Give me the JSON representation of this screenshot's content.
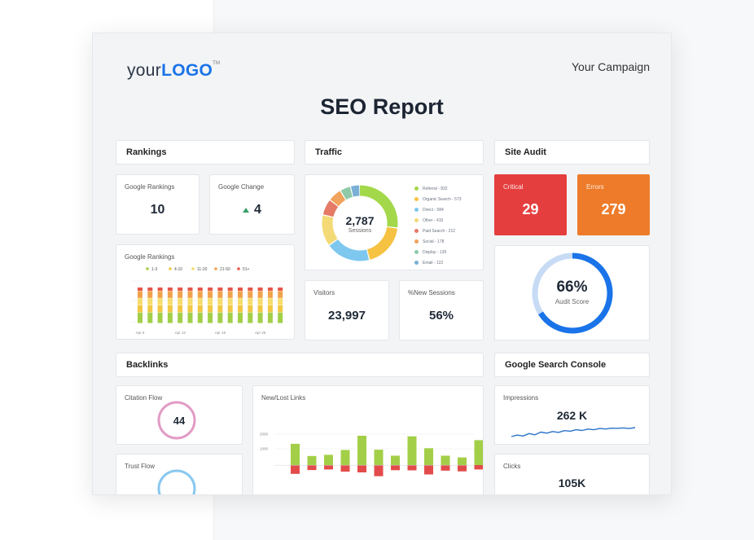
{
  "header": {
    "logo_prefix": "your",
    "logo_bold": "LOGO",
    "logo_tm": "TM",
    "campaign": "Your Campaign",
    "title": "SEO Report"
  },
  "sections": {
    "rankings": "Rankings",
    "traffic": "Traffic",
    "site_audit": "Site Audit",
    "backlinks": "Backlinks",
    "gsc": "Google Search Console"
  },
  "rankings": {
    "google_rankings_label": "Google Rankings",
    "google_rankings_value": "10",
    "google_change_label": "Google Change",
    "google_change_value": "4"
  },
  "traffic": {
    "sessions_value": "2,787",
    "sessions_label": "Sessions",
    "visitors_label": "Visitors",
    "visitors_value": "23,997",
    "new_sessions_label": "%New Sessions",
    "new_sessions_value": "56%"
  },
  "site_audit": {
    "critical_label": "Critical",
    "critical_value": "29",
    "errors_label": "Errors",
    "errors_value": "279",
    "score_value": "66%",
    "score_label": "Audit Score",
    "score": 0.66
  },
  "backlinks": {
    "citation_flow_label": "Citation Flow",
    "citation_flow_value": "44",
    "trust_flow_label": "Trust Flow",
    "new_lost_label": "New/Lost Links"
  },
  "gsc": {
    "impressions_label": "Impressions",
    "impressions_value": "262 K",
    "clicks_label": "Clicks",
    "clicks_value": "105K"
  },
  "colors": {
    "critical": "#e53e3e",
    "errors": "#ed7b2a",
    "accent": "#1a73e8",
    "citation": "#e29bc5",
    "trust": "#89c8ef"
  },
  "chart_data": [
    {
      "type": "pie",
      "categories": [
        "Referral - 832",
        "Organic Search - 573",
        "Direct - 584",
        "Other - 410",
        "Paid Search - 212",
        "Social - 178",
        "Display - 139",
        "Email - 122"
      ],
      "values": [
        832,
        573,
        584,
        410,
        212,
        178,
        139,
        122
      ],
      "colors": [
        "#a3d84a",
        "#f5c242",
        "#7ec8ef",
        "#f3da76",
        "#e57a67",
        "#f0a35c",
        "#8fc9a8",
        "#7ab0d4"
      ],
      "title": ""
    },
    {
      "type": "bar",
      "title": "Google Rankings",
      "legend": [
        "1-3",
        "4-10",
        "11-20",
        "21-50",
        "51+"
      ],
      "legend_colors": [
        "#a3cf48",
        "#f1c744",
        "#f6dd6a",
        "#f0a24b",
        "#e7554a"
      ],
      "categories": [
        "Apr 5",
        "",
        "",
        "",
        "Apr 12",
        "",
        "",
        "",
        "Apr 19",
        "",
        "",
        "",
        "Apr 26",
        "",
        ""
      ],
      "series": [
        {
          "name": "1-3",
          "values": [
            3,
            3,
            3,
            3,
            3,
            3,
            3,
            3,
            3,
            3,
            3,
            3,
            3,
            3,
            3
          ]
        },
        {
          "name": "4-10",
          "values": [
            2,
            2,
            2,
            2,
            2,
            2,
            2,
            2,
            2,
            2,
            2,
            2,
            2,
            2,
            2
          ]
        },
        {
          "name": "11-20",
          "values": [
            2,
            2,
            2,
            2,
            2,
            2,
            2,
            2,
            2,
            2,
            2,
            2,
            2,
            2,
            2
          ]
        },
        {
          "name": "21-50",
          "values": [
            2,
            2,
            2,
            2,
            2,
            2,
            2,
            2,
            2,
            2,
            2,
            2,
            2,
            2,
            2
          ]
        },
        {
          "name": "51+",
          "values": [
            1,
            1,
            1,
            1,
            1,
            1,
            1,
            1,
            1,
            1,
            1,
            1,
            1,
            1,
            1
          ]
        }
      ]
    },
    {
      "type": "bar",
      "title": "New/Lost Links",
      "yticks": [
        "2000",
        "1000"
      ],
      "new": [
        1450,
        620,
        700,
        1030,
        2000,
        1050,
        640,
        1960,
        1150,
        640,
        520,
        1700
      ],
      "lost": [
        600,
        340,
        300,
        450,
        500,
        760,
        350,
        360,
        640,
        380,
        430,
        300
      ]
    },
    {
      "type": "line",
      "title": "Impressions",
      "values": [
        2,
        3,
        2.4,
        4,
        3.2,
        5,
        4.3,
        5.4,
        4.8,
        6,
        5.6,
        6.6,
        6.1,
        7,
        6.6,
        7.4,
        7.1,
        7.6,
        7.5,
        7.8,
        7.4,
        8
      ]
    }
  ]
}
